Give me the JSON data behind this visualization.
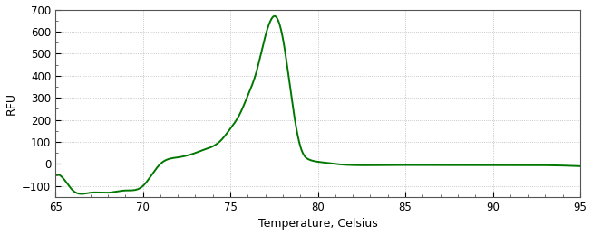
{
  "title": "",
  "xlabel": "Temperature, Celsius",
  "ylabel": "RFU",
  "xlim": [
    65,
    95
  ],
  "ylim": [
    -150,
    700
  ],
  "xticks": [
    65,
    70,
    75,
    80,
    85,
    90,
    95
  ],
  "yticks": [
    -100,
    0,
    100,
    200,
    300,
    400,
    500,
    600,
    700
  ],
  "line_color": "#007700",
  "line_width": 1.4,
  "background_color": "#ffffff",
  "grid_color": "#999999",
  "axis_label_color": "#000000",
  "tick_label_color": "#000000",
  "spine_color": "#555555",
  "figsize": [
    6.53,
    2.6
  ],
  "dpi": 100,
  "control_x": [
    65.0,
    65.5,
    66.0,
    67.0,
    68.0,
    69.0,
    70.0,
    70.5,
    71.0,
    72.0,
    73.0,
    73.5,
    74.0,
    74.5,
    75.0,
    75.5,
    76.0,
    76.5,
    77.0,
    77.3,
    77.5,
    78.0,
    78.5,
    79.0,
    79.5,
    80.0,
    80.5,
    81.0,
    82.0,
    84.0,
    86.0,
    88.0,
    90.0,
    92.0,
    95.0
  ],
  "control_y": [
    -50,
    -70,
    -120,
    -130,
    -130,
    -120,
    -100,
    -50,
    0,
    30,
    50,
    65,
    80,
    110,
    160,
    220,
    310,
    420,
    580,
    650,
    670,
    570,
    300,
    80,
    20,
    10,
    5,
    0,
    -5,
    -5,
    -5,
    -5,
    -5,
    -5,
    -10
  ]
}
